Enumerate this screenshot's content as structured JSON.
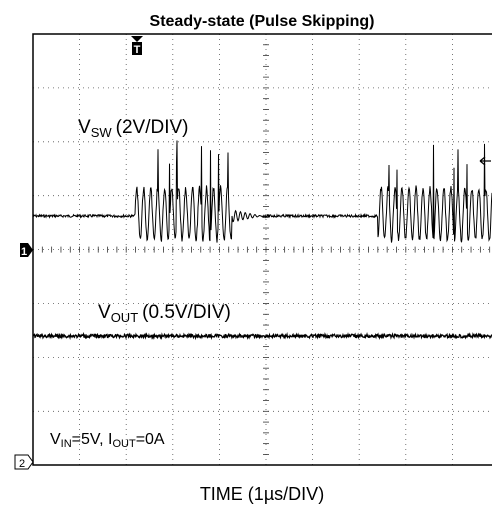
{
  "title": "Steady-state (Pulse Skipping)",
  "x_axis_label": "TIME (1µs/DIV)",
  "trigger_marker": "T",
  "channel_markers": [
    "1",
    "2"
  ],
  "annotations": [
    {
      "parts": [
        "V",
        "SW",
        "(2V/DIV)"
      ]
    },
    {
      "parts": [
        "V",
        "OUT",
        "(0.5V/DIV)"
      ]
    },
    {
      "parts": [
        "V",
        "IN",
        "=5V, I",
        "OUT",
        "=0A"
      ]
    }
  ]
}
